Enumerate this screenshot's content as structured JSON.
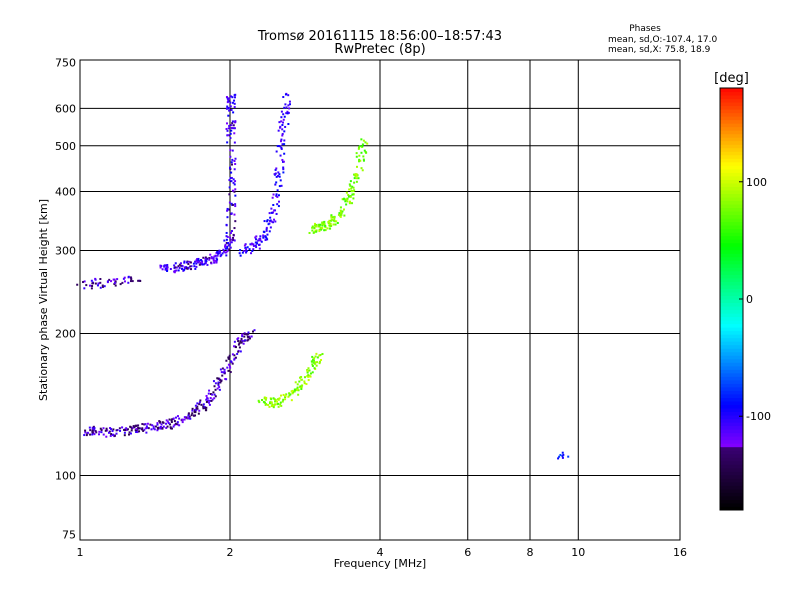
{
  "chart_data": {
    "type": "scatter",
    "title": "Tromsø 20161115 18:56:00–18:57:43",
    "subtitle": "RwPretec (8p)",
    "phase_stats": {
      "heading": "Phases",
      "line1": "mean, sd,O:-107.4, 17.0",
      "line2": "mean, sd,X:  75.8, 18.9"
    },
    "xlabel": "Frequency [MHz]",
    "ylabel": "Stationary phase Virtual Height [km]",
    "x_scale": "log",
    "y_scale": "log",
    "xlim": [
      1,
      16
    ],
    "ylim": [
      73,
      760
    ],
    "x_ticks": [
      1,
      2,
      4,
      6,
      8,
      10,
      16
    ],
    "x_tick_labels": [
      "1",
      "2",
      "4",
      "6",
      "8",
      "10",
      "16"
    ],
    "y_ticks": [
      75,
      100,
      200,
      300,
      400,
      500,
      600,
      750
    ],
    "y_tick_labels": [
      "75",
      "100",
      "200",
      "300",
      "400",
      "500",
      "600",
      "750"
    ],
    "grid": true,
    "colorbar": {
      "label": "[deg]",
      "min": -180,
      "max": 180,
      "ticks": [
        100,
        0,
        -100
      ],
      "tick_labels": [
        "100",
        "0",
        "-100"
      ]
    },
    "echo_traces": [
      {
        "mode": "O",
        "layer": "E",
        "phase": -125,
        "points": [
          [
            1.02,
            125
          ],
          [
            1.1,
            124
          ],
          [
            1.2,
            124
          ],
          [
            1.3,
            126
          ],
          [
            1.4,
            127
          ],
          [
            1.5,
            129
          ],
          [
            1.6,
            132
          ],
          [
            1.7,
            137
          ],
          [
            1.8,
            145
          ],
          [
            1.9,
            158
          ],
          [
            2.0,
            175
          ],
          [
            2.1,
            195
          ],
          [
            2.2,
            200
          ]
        ]
      },
      {
        "mode": "O",
        "layer": "F",
        "phase": -112,
        "points": [
          [
            1.45,
            275
          ],
          [
            1.55,
            277
          ],
          [
            1.65,
            280
          ],
          [
            1.75,
            285
          ],
          [
            1.85,
            290
          ],
          [
            1.95,
            300
          ],
          [
            2.0,
            320
          ],
          [
            2.0,
            400
          ],
          [
            2.0,
            500
          ],
          [
            2.0,
            600
          ],
          [
            2.0,
            640
          ]
        ]
      },
      {
        "mode": "O",
        "layer": "F-retrace",
        "phase": -105,
        "points": [
          [
            2.1,
            300
          ],
          [
            2.25,
            310
          ],
          [
            2.35,
            330
          ],
          [
            2.45,
            370
          ],
          [
            2.5,
            450
          ],
          [
            2.55,
            550
          ],
          [
            2.6,
            640
          ]
        ]
      },
      {
        "mode": "X",
        "layer": "E",
        "phase": 80,
        "points": [
          [
            2.3,
            145
          ],
          [
            2.45,
            143
          ],
          [
            2.6,
            148
          ],
          [
            2.75,
            155
          ],
          [
            2.9,
            170
          ],
          [
            3.0,
            180
          ]
        ]
      },
      {
        "mode": "X",
        "layer": "F",
        "phase": 75,
        "points": [
          [
            2.9,
            335
          ],
          [
            3.05,
            338
          ],
          [
            3.2,
            345
          ],
          [
            3.35,
            365
          ],
          [
            3.5,
            400
          ],
          [
            3.6,
            450
          ],
          [
            3.7,
            520
          ]
        ]
      },
      {
        "mode": "O",
        "layer": "low-F",
        "phase": -120,
        "points": [
          [
            1.0,
            255
          ],
          [
            1.15,
            258
          ],
          [
            1.3,
            262
          ]
        ]
      },
      {
        "mode": "O",
        "layer": "isolated",
        "phase": -90,
        "points": [
          [
            9.0,
            110
          ],
          [
            9.2,
            112
          ],
          [
            9.4,
            109
          ]
        ]
      }
    ]
  }
}
